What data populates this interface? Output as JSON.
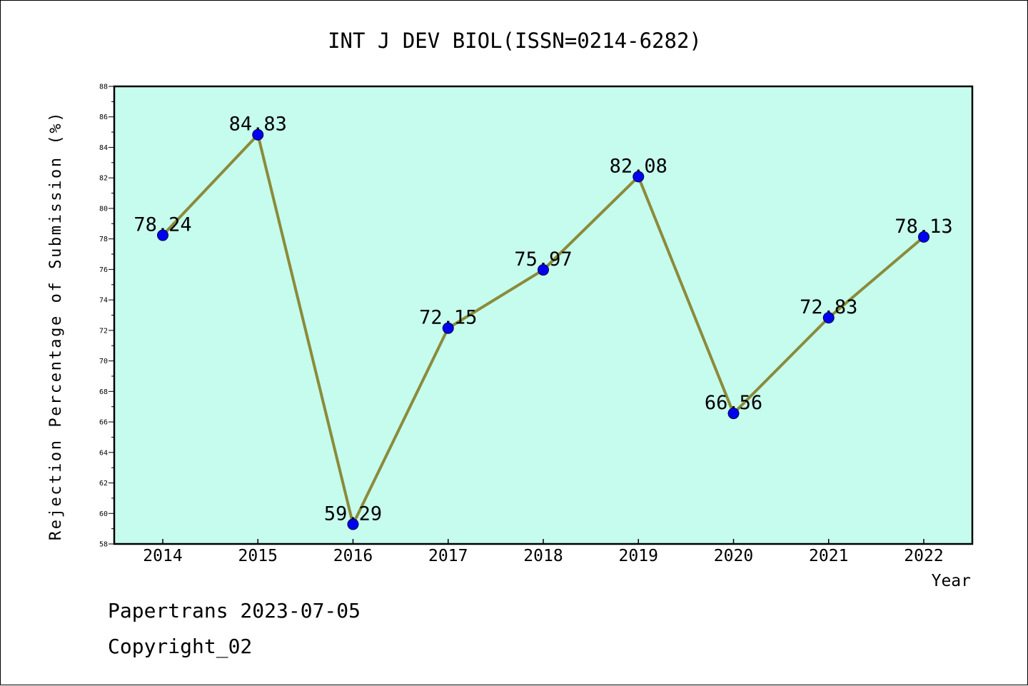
{
  "chart_data": {
    "type": "line",
    "title": "INT J DEV BIOL(ISSN=0214-6282)",
    "xlabel": "Year",
    "ylabel": "Rejection Percentage of Submission (%)",
    "categories": [
      "2014",
      "2015",
      "2016",
      "2017",
      "2018",
      "2019",
      "2020",
      "2021",
      "2022"
    ],
    "series": [
      {
        "values": [
          78.24,
          84.83,
          59.29,
          72.15,
          75.97,
          82.08,
          66.56,
          72.83,
          78.13
        ]
      }
    ],
    "data_labels": [
      "78.24",
      "84.83",
      "59.29",
      "72.15",
      "75.97",
      "82.08",
      "66.56",
      "72.83",
      "78.13"
    ],
    "ylim": [
      58,
      88
    ],
    "yticks": [
      "58",
      "60",
      "62",
      "64",
      "66",
      "68",
      "70",
      "72",
      "74",
      "76",
      "78",
      "80",
      "82",
      "84",
      "86",
      "88"
    ],
    "grid": false,
    "legend": "none",
    "colors": {
      "plot_background": "#c6fcee",
      "line": "#8b8b3a",
      "marker": "#0000ee",
      "axis": "#000000"
    }
  },
  "footer": {
    "line1": "Papertrans 2023-07-05",
    "line2": "Copyright_02"
  }
}
